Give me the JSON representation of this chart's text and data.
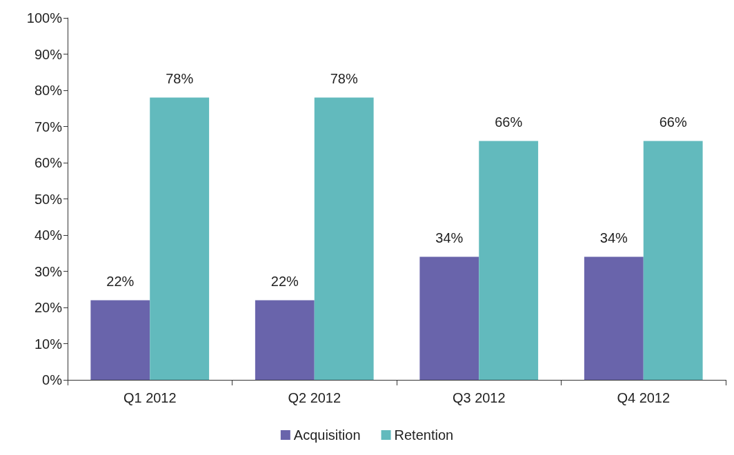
{
  "chart_data": {
    "type": "bar",
    "categories": [
      "Q1 2012",
      "Q2 2012",
      "Q3 2012",
      "Q4 2012"
    ],
    "series": [
      {
        "name": "Acquisition",
        "color": "#6964ab",
        "values": [
          22,
          22,
          34,
          34
        ],
        "value_labels": [
          "22%",
          "22%",
          "34%",
          "34%"
        ]
      },
      {
        "name": "Retention",
        "color": "#62babd",
        "values": [
          78,
          78,
          66,
          66
        ],
        "value_labels": [
          "78%",
          "78%",
          "66%",
          "66%"
        ]
      }
    ],
    "ylim": [
      0,
      100
    ],
    "yticks": [
      {
        "value": 0,
        "label": "0%"
      },
      {
        "value": 10,
        "label": "10%"
      },
      {
        "value": 20,
        "label": "20%"
      },
      {
        "value": 30,
        "label": "30%"
      },
      {
        "value": 40,
        "label": "40%"
      },
      {
        "value": 50,
        "label": "50%"
      },
      {
        "value": 60,
        "label": "60%"
      },
      {
        "value": 70,
        "label": "70%"
      },
      {
        "value": 80,
        "label": "80%"
      },
      {
        "value": 90,
        "label": "90%"
      },
      {
        "value": 100,
        "label": "100%"
      }
    ],
    "grid": false,
    "legend": "bottom"
  }
}
